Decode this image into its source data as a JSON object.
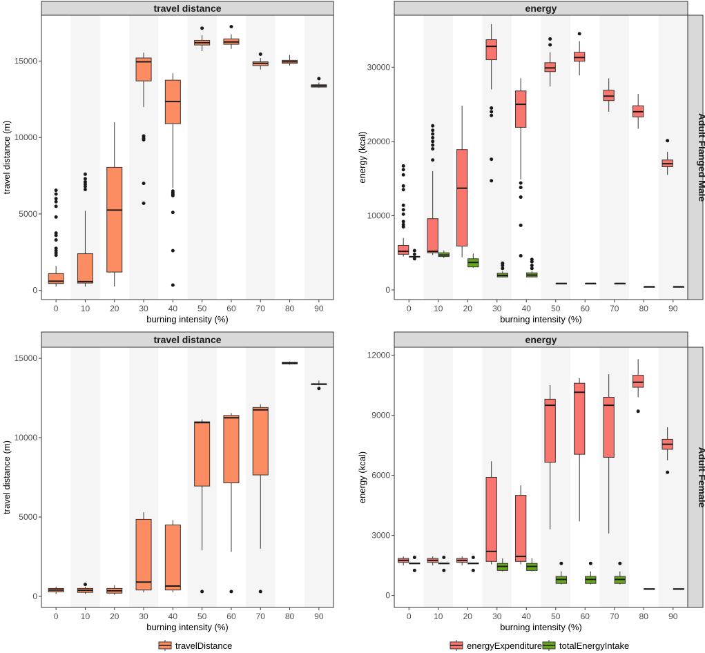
{
  "colors": {
    "travelDistance": "#fc8d62",
    "energyExpenditure": "#f8766d",
    "totalEnergyIntake": "#66a61e",
    "band": "#f5f5f5",
    "strip": "#d9d9d9"
  },
  "legends": {
    "left": [
      {
        "key": "travelDistance",
        "label": "travelDistance"
      }
    ],
    "right": [
      {
        "key": "energyExpenditure",
        "label": "energyExpenditure"
      },
      {
        "key": "totalEnergyIntake",
        "label": "totalEnergyIntake"
      }
    ]
  },
  "chart_data": [
    {
      "type": "boxplot",
      "strip_title": "travel distance",
      "row_label": "Adult Flanged Male",
      "xlabel": "burning intensity (%)",
      "ylabel": "travel distance (m)",
      "categories": [
        "0",
        "10",
        "20",
        "30",
        "40",
        "50",
        "60",
        "70",
        "80",
        "90"
      ],
      "ylim": [
        -600,
        18000
      ],
      "yticks": [
        0,
        5000,
        10000,
        15000
      ],
      "ytick_labels": [
        "0",
        "5000",
        "10000",
        "15000"
      ],
      "series": [
        {
          "name": "travelDistance",
          "boxes": [
            {
              "q1": 450,
              "med": 600,
              "q3": 1100,
              "lo": 250,
              "hi": 1600,
              "out": [
                2300,
                2450,
                2600,
                2750,
                3300,
                3600,
                3750,
                4800,
                5500,
                5800,
                6000,
                6300,
                6550
              ]
            },
            {
              "q1": 480,
              "med": 580,
              "q3": 2400,
              "lo": 250,
              "hi": 5200,
              "out": [
                6600,
                6800,
                6950,
                7100,
                7300,
                7600
              ]
            },
            {
              "q1": 1200,
              "med": 5250,
              "q3": 8050,
              "lo": 250,
              "hi": 11000,
              "out": []
            },
            {
              "q1": 13700,
              "med": 14950,
              "q3": 15200,
              "lo": 12000,
              "hi": 15550,
              "out": [
                10100,
                9950,
                9850,
                7000,
                5700
              ]
            },
            {
              "q1": 10900,
              "med": 12350,
              "q3": 13750,
              "lo": 6700,
              "hi": 14200,
              "out": [
                6500,
                6400,
                6300,
                6200,
                5100,
                2600,
                350
              ]
            },
            {
              "q1": 16050,
              "med": 16200,
              "q3": 16350,
              "lo": 15650,
              "hi": 16700,
              "out": [
                17150
              ]
            },
            {
              "q1": 16100,
              "med": 16250,
              "q3": 16450,
              "lo": 15800,
              "hi": 16750,
              "out": [
                17250
              ]
            },
            {
              "q1": 14700,
              "med": 14850,
              "q3": 14950,
              "lo": 14450,
              "hi": 15200,
              "out": [
                15450
              ]
            },
            {
              "q1": 14850,
              "med": 14950,
              "q3": 15050,
              "lo": 14700,
              "hi": 15400,
              "out": []
            },
            {
              "q1": 13300,
              "med": 13380,
              "q3": 13450,
              "lo": 13250,
              "hi": 13600,
              "out": [
                13850
              ]
            }
          ]
        }
      ]
    },
    {
      "type": "boxplot",
      "strip_title": "energy",
      "row_label": "Adult Flanged Male",
      "xlabel": "burning intensity (%)",
      "ylabel": "energy (kcal)",
      "categories": [
        "0",
        "10",
        "20",
        "30",
        "40",
        "50",
        "60",
        "70",
        "80",
        "90"
      ],
      "ylim": [
        -1300,
        37000
      ],
      "yticks": [
        0,
        10000,
        20000,
        30000
      ],
      "ytick_labels": [
        "0",
        "10000",
        "20000",
        "30000"
      ],
      "series": [
        {
          "name": "energyExpenditure",
          "boxes": [
            {
              "q1": 4800,
              "med": 5200,
              "q3": 6000,
              "lo": 4500,
              "hi": 7000,
              "out": [
                8500,
                8800,
                9200,
                10200,
                10800,
                11400,
                13500,
                14000,
                15500,
                16200,
                16700
              ]
            },
            {
              "q1": 5000,
              "med": 5200,
              "q3": 9600,
              "lo": 4700,
              "hi": 16000,
              "out": [
                17500,
                19000,
                19500,
                20000,
                20500,
                21000,
                21500,
                22100
              ]
            },
            {
              "q1": 5900,
              "med": 13700,
              "q3": 18900,
              "lo": 4400,
              "hi": 24800,
              "out": []
            },
            {
              "q1": 31000,
              "med": 32800,
              "q3": 33700,
              "lo": 27000,
              "hi": 35800,
              "out": [
                24500,
                24000,
                23500,
                17600,
                14700
              ]
            },
            {
              "q1": 21900,
              "med": 25000,
              "q3": 26800,
              "lo": 14900,
              "hi": 28500,
              "out": [
                14400,
                13800,
                12500,
                8700,
                4600
              ]
            },
            {
              "q1": 29400,
              "med": 29900,
              "q3": 30600,
              "lo": 27400,
              "hi": 32000,
              "out": [
                33000,
                33800
              ]
            },
            {
              "q1": 30800,
              "med": 31300,
              "q3": 32000,
              "lo": 28900,
              "hi": 33500,
              "out": [
                34500
              ]
            },
            {
              "q1": 25500,
              "med": 26100,
              "q3": 26900,
              "lo": 24000,
              "hi": 28500,
              "out": []
            },
            {
              "q1": 23300,
              "med": 24000,
              "q3": 24800,
              "lo": 21700,
              "hi": 26400,
              "out": []
            },
            {
              "q1": 16600,
              "med": 17000,
              "q3": 17500,
              "lo": 15500,
              "hi": 18600,
              "out": [
                20100
              ]
            }
          ]
        },
        {
          "name": "totalEnergyIntake",
          "boxes": [
            {
              "q1": 4450,
              "med": 4480,
              "q3": 4500,
              "lo": 4450,
              "hi": 4500,
              "out": [
                4200,
                4800,
                5300
              ]
            },
            {
              "q1": 4500,
              "med": 4700,
              "q3": 5000,
              "lo": 4300,
              "hi": 5300,
              "out": []
            },
            {
              "q1": 3100,
              "med": 3700,
              "q3": 4200,
              "lo": 3000,
              "hi": 4900,
              "out": []
            },
            {
              "q1": 1750,
              "med": 1950,
              "q3": 2250,
              "lo": 1700,
              "hi": 2500,
              "out": [
                2900,
                3300,
                3600
              ]
            },
            {
              "q1": 1750,
              "med": 2000,
              "q3": 2300,
              "lo": 1700,
              "hi": 2500,
              "out": [
                2900,
                3300,
                3800,
                4100
              ]
            },
            {
              "q1": 850,
              "med": 870,
              "q3": 890,
              "lo": 850,
              "hi": 890,
              "out": []
            },
            {
              "q1": 850,
              "med": 870,
              "q3": 890,
              "lo": 850,
              "hi": 890,
              "out": []
            },
            {
              "q1": 850,
              "med": 870,
              "q3": 890,
              "lo": 850,
              "hi": 890,
              "out": []
            },
            {
              "q1": 420,
              "med": 430,
              "q3": 440,
              "lo": 420,
              "hi": 440,
              "out": []
            },
            {
              "q1": 420,
              "med": 430,
              "q3": 440,
              "lo": 420,
              "hi": 440,
              "out": []
            }
          ]
        }
      ]
    },
    {
      "type": "boxplot",
      "strip_title": "travel distance",
      "row_label": "Adult Female",
      "xlabel": "burning intensity (%)",
      "ylabel": "travel distance (m)",
      "categories": [
        "0",
        "10",
        "20",
        "30",
        "40",
        "50",
        "60",
        "70",
        "80",
        "90"
      ],
      "ylim": [
        -700,
        15700
      ],
      "yticks": [
        0,
        5000,
        10000,
        15000
      ],
      "ytick_labels": [
        "0",
        "5000",
        "10000",
        "15000"
      ],
      "series": [
        {
          "name": "travelDistance",
          "boxes": [
            {
              "q1": 280,
              "med": 400,
              "q3": 500,
              "lo": 150,
              "hi": 600,
              "out": []
            },
            {
              "q1": 250,
              "med": 380,
              "q3": 500,
              "lo": 150,
              "hi": 600,
              "out": [
                750
              ]
            },
            {
              "q1": 200,
              "med": 350,
              "q3": 500,
              "lo": 100,
              "hi": 700,
              "out": []
            },
            {
              "q1": 400,
              "med": 900,
              "q3": 4850,
              "lo": 250,
              "hi": 5300,
              "out": []
            },
            {
              "q1": 400,
              "med": 650,
              "q3": 4500,
              "lo": 250,
              "hi": 4800,
              "out": []
            },
            {
              "q1": 6950,
              "med": 10950,
              "q3": 11000,
              "lo": 2900,
              "hi": 11150,
              "out": [
                300
              ]
            },
            {
              "q1": 7150,
              "med": 11250,
              "q3": 11400,
              "lo": 2800,
              "hi": 11550,
              "out": [
                300
              ]
            },
            {
              "q1": 7650,
              "med": 11750,
              "q3": 11900,
              "lo": 3000,
              "hi": 12100,
              "out": [
                300
              ]
            },
            {
              "q1": 14650,
              "med": 14700,
              "q3": 14750,
              "lo": 14600,
              "hi": 14800,
              "out": []
            },
            {
              "q1": 13340,
              "med": 13370,
              "q3": 13400,
              "lo": 13300,
              "hi": 13600,
              "out": [
                13100
              ]
            }
          ]
        }
      ]
    },
    {
      "type": "boxplot",
      "strip_title": "energy",
      "row_label": "Adult Female",
      "xlabel": "burning intensity (%)",
      "ylabel": "energy (kcal)",
      "categories": [
        "0",
        "10",
        "20",
        "30",
        "40",
        "50",
        "60",
        "70",
        "80",
        "90"
      ],
      "ylim": [
        -600,
        12400
      ],
      "yticks": [
        0,
        3000,
        6000,
        9000,
        12000
      ],
      "ytick_labels": [
        "0",
        "3000",
        "6000",
        "9000",
        "12000"
      ],
      "series": [
        {
          "name": "energyExpenditure",
          "boxes": [
            {
              "q1": 1650,
              "med": 1750,
              "q3": 1850,
              "lo": 1500,
              "hi": 1950,
              "out": []
            },
            {
              "q1": 1650,
              "med": 1750,
              "q3": 1850,
              "lo": 1500,
              "hi": 1950,
              "out": []
            },
            {
              "q1": 1650,
              "med": 1750,
              "q3": 1850,
              "lo": 1500,
              "hi": 1950,
              "out": []
            },
            {
              "q1": 1700,
              "med": 2200,
              "q3": 5900,
              "lo": 1550,
              "hi": 6700,
              "out": []
            },
            {
              "q1": 1700,
              "med": 1950,
              "q3": 5000,
              "lo": 1550,
              "hi": 5500,
              "out": []
            },
            {
              "q1": 6650,
              "med": 9500,
              "q3": 9800,
              "lo": 3300,
              "hi": 10500,
              "out": []
            },
            {
              "q1": 7050,
              "med": 10150,
              "q3": 10600,
              "lo": 3700,
              "hi": 10850,
              "out": []
            },
            {
              "q1": 6900,
              "med": 9500,
              "q3": 9900,
              "lo": 3100,
              "hi": 11050,
              "out": []
            },
            {
              "q1": 10400,
              "med": 10650,
              "q3": 11000,
              "lo": 9900,
              "hi": 11800,
              "out": [
                9200
              ]
            },
            {
              "q1": 7300,
              "med": 7550,
              "q3": 7800,
              "lo": 6750,
              "hi": 8400,
              "out": [
                6150
              ]
            }
          ]
        },
        {
          "name": "totalEnergyIntake",
          "boxes": [
            {
              "q1": 1580,
              "med": 1600,
              "q3": 1620,
              "lo": 1580,
              "hi": 1620,
              "out": [
                1250,
                1900
              ]
            },
            {
              "q1": 1580,
              "med": 1600,
              "q3": 1620,
              "lo": 1580,
              "hi": 1620,
              "out": [
                1250,
                1900
              ]
            },
            {
              "q1": 1580,
              "med": 1600,
              "q3": 1620,
              "lo": 1580,
              "hi": 1620,
              "out": [
                1250,
                1900
              ]
            },
            {
              "q1": 1250,
              "med": 1450,
              "q3": 1600,
              "lo": 1200,
              "hi": 1850,
              "out": []
            },
            {
              "q1": 1250,
              "med": 1450,
              "q3": 1600,
              "lo": 1200,
              "hi": 1850,
              "out": []
            },
            {
              "q1": 600,
              "med": 800,
              "q3": 950,
              "lo": 550,
              "hi": 1200,
              "out": [
                1600
              ]
            },
            {
              "q1": 600,
              "med": 800,
              "q3": 950,
              "lo": 550,
              "hi": 1200,
              "out": [
                1600
              ]
            },
            {
              "q1": 600,
              "med": 800,
              "q3": 950,
              "lo": 550,
              "hi": 1200,
              "out": [
                1600
              ]
            },
            {
              "q1": 300,
              "med": 320,
              "q3": 340,
              "lo": 300,
              "hi": 340,
              "out": []
            },
            {
              "q1": 300,
              "med": 320,
              "q3": 340,
              "lo": 300,
              "hi": 340,
              "out": []
            }
          ]
        }
      ]
    }
  ]
}
